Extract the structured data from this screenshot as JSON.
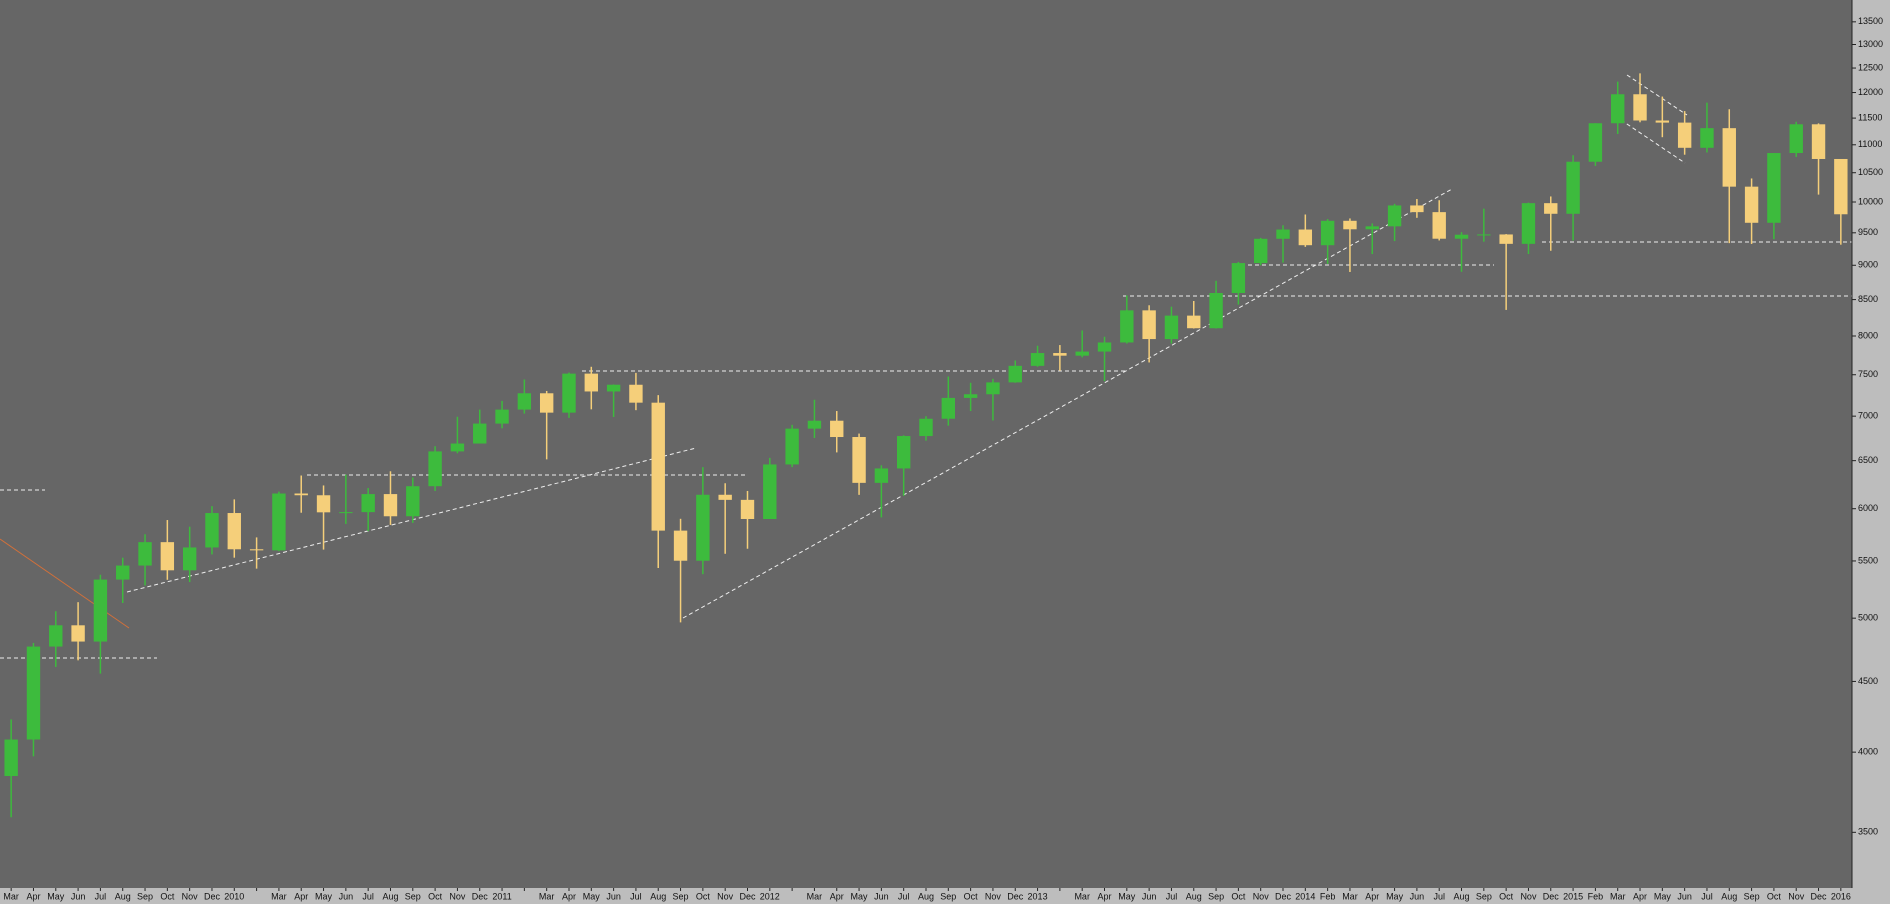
{
  "chart_data": {
    "type": "candlestick",
    "categories": [
      "Mar",
      "Apr",
      "May",
      "Jun",
      "Jul",
      "Aug",
      "Sep",
      "Oct",
      "Nov",
      "Dec",
      "2010",
      null,
      "Mar",
      "Apr",
      "May",
      "Jun",
      "Jul",
      "Aug",
      "Sep",
      "Oct",
      "Nov",
      "Dec",
      "2011",
      null,
      "Mar",
      "Apr",
      "May",
      "Jun",
      "Jul",
      "Aug",
      "Sep",
      "Oct",
      "Nov",
      "Dec",
      "2012",
      null,
      "Mar",
      "Apr",
      "May",
      "Jun",
      "Jul",
      "Aug",
      "Sep",
      "Oct",
      "Nov",
      "Dec",
      "2013",
      null,
      "Mar",
      "Apr",
      "May",
      "Jun",
      "Jul",
      "Aug",
      "Sep",
      "Oct",
      "Nov",
      "Dec",
      "2014",
      "Feb",
      "Mar",
      "Apr",
      "May",
      "Jun",
      "Jul",
      "Aug",
      "Sep",
      "Oct",
      "Nov",
      "Dec",
      "2015",
      "Feb",
      "Mar",
      "Apr",
      "May",
      "Jun",
      "Jul",
      "Aug",
      "Sep",
      "Oct",
      "Nov",
      "Dec",
      "2016"
    ],
    "open": [
      3844,
      4085,
      4769,
      4941,
      4809,
      5332,
      5458,
      5675,
      5415,
      5625,
      5957,
      5608,
      5598,
      6154,
      6136,
      5964,
      5966,
      6148,
      5925,
      6229,
      6601,
      6688,
      6914,
      7077,
      7272,
      7041,
      7514,
      7294,
      7376,
      7159,
      5785,
      5502,
      6141,
      6089,
      5898,
      6459,
      6856,
      6947,
      6761,
      6264,
      6416,
      6772,
      6970,
      7216,
      7260,
      7405,
      7612,
      7776,
      7742,
      7795,
      7914,
      8349,
      7959,
      8276,
      8104,
      8594,
      9033,
      9406,
      9552,
      9306,
      9692,
      9556,
      9603,
      9943,
      9833,
      9407,
      9470,
      9474,
      9327,
      9981,
      9806,
      10694,
      11402,
      11966,
      11454,
      11414,
      10945,
      11309,
      10259,
      9660,
      10850,
      11382,
      10743
    ],
    "high": [
      4224,
      4798,
      5058,
      5135,
      5375,
      5530,
      5750,
      5888,
      5823,
      6026,
      6094,
      5720,
      6173,
      6341,
      6237,
      6350,
      6210,
      6386,
      6320,
      6658,
      6993,
      7077,
      7180,
      7441,
      7300,
      7527,
      7600,
      7380,
      7523,
      7250,
      5900,
      6430,
      6260,
      6180,
      6530,
      6900,
      7194,
      7060,
      6800,
      6450,
      6780,
      7000,
      7478,
      7400,
      7450,
      7680,
      7871,
      7880,
      8074,
      7990,
      8558,
      8420,
      8400,
      8480,
      8770,
      9050,
      9420,
      9620,
      9794,
      9720,
      9730,
      9650,
      9970,
      10050,
      10030,
      9510,
      9890,
      9480,
      9990,
      10093,
      10810,
      11402,
      12220,
      12390,
      11920,
      11635,
      11800,
      11670,
      10400,
      10850,
      11430,
      11400,
      10743
    ],
    "low": [
      3589,
      3972,
      4610,
      4661,
      4559,
      5128,
      5280,
      5330,
      5310,
      5560,
      5530,
      5430,
      5590,
      5960,
      5605,
      5850,
      5780,
      5840,
      5860,
      6180,
      6580,
      6710,
      6860,
      7030,
      6514,
      6980,
      7080,
      6990,
      7070,
      5436,
      4965,
      5380,
      5566,
      5613,
      5900,
      6430,
      6750,
      6590,
      6140,
      5914,
      6130,
      6720,
      6890,
      7060,
      6950,
      7400,
      7600,
      7550,
      7720,
      7420,
      7900,
      7655,
      7900,
      8100,
      8100,
      8430,
      9000,
      9040,
      9280,
      9020,
      8900,
      9170,
      9370,
      9740,
      9380,
      8903,
      9360,
      8355,
      9170,
      9220,
      9380,
      10620,
      11200,
      11420,
      11140,
      10820,
      10860,
      9338,
      9325,
      9400,
      10780,
      10124,
      9314
    ],
    "close": [
      4085,
      4769,
      4941,
      4809,
      5332,
      5458,
      5675,
      5415,
      5625,
      5957,
      5608,
      5598,
      6154,
      6136,
      5964,
      5966,
      6148,
      5925,
      6229,
      6601,
      6688,
      6914,
      7077,
      7272,
      7041,
      7514,
      7294,
      7376,
      7159,
      5785,
      5502,
      6141,
      6089,
      5898,
      6459,
      6856,
      6947,
      6761,
      6264,
      6416,
      6772,
      6970,
      7216,
      7260,
      7405,
      7612,
      7776,
      7742,
      7795,
      7914,
      8349,
      7959,
      8276,
      8104,
      8594,
      9033,
      9406,
      9552,
      9306,
      9692,
      9556,
      9603,
      9943,
      9833,
      9407,
      9470,
      9474,
      9327,
      9981,
      9806,
      10694,
      11402,
      11966,
      11454,
      11414,
      10945,
      11309,
      10259,
      9660,
      10850,
      11382,
      10743,
      9798
    ],
    "up_color": "#3dbb3d",
    "down_color": "#f5cf7a",
    "ylim": [
      3190,
      14000
    ],
    "log_scale": true,
    "yticks": [
      3500,
      4000,
      4500,
      5000,
      5500,
      6000,
      6500,
      7000,
      7500,
      8000,
      8500,
      9000,
      9500,
      10000,
      10500,
      11000,
      11500,
      12000,
      12500,
      13000,
      13500
    ]
  }
}
